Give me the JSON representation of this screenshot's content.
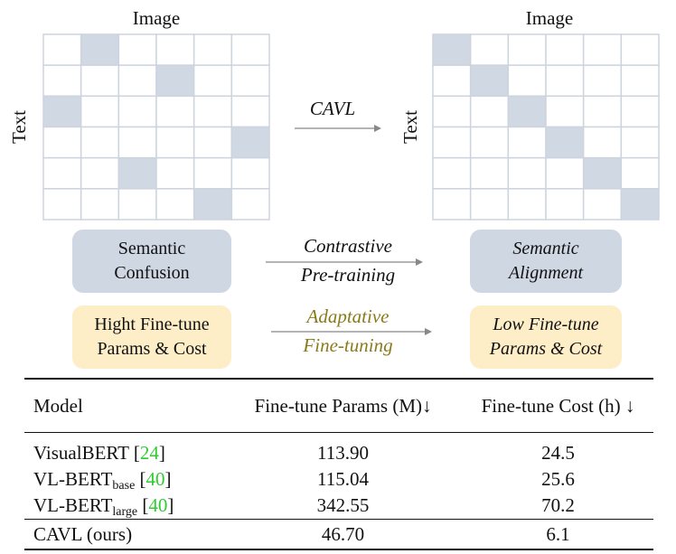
{
  "left_grid": {
    "title": "Image",
    "axis": "Text",
    "rows": 6,
    "cols": 6,
    "highlighted": [
      [
        0,
        1
      ],
      [
        1,
        3
      ],
      [
        2,
        0
      ],
      [
        3,
        5
      ],
      [
        4,
        2
      ],
      [
        5,
        4
      ]
    ]
  },
  "right_grid": {
    "title": "Image",
    "axis": "Text",
    "rows": 6,
    "cols": 6,
    "highlighted": [
      [
        0,
        0
      ],
      [
        1,
        1
      ],
      [
        2,
        2
      ],
      [
        3,
        3
      ],
      [
        4,
        4
      ],
      [
        5,
        5
      ]
    ]
  },
  "arrow_top": {
    "label": "CAVL"
  },
  "row1": {
    "left": [
      "Semantic",
      "Confusion"
    ],
    "arrow": [
      "Contrastive",
      "Pre-training"
    ],
    "right": [
      "Semantic",
      "Alignment"
    ]
  },
  "row2": {
    "left": [
      "Hight Fine-tune",
      "Params & Cost"
    ],
    "arrow": [
      "Adaptative",
      "Fine-tuning"
    ],
    "right": [
      "Low Fine-tune",
      "Params & Cost"
    ]
  },
  "colors": {
    "cell_highlight": "#d0d8e4",
    "grid_line": "#cdd4de",
    "arrow": "#888888",
    "ref": "#2ecc2e",
    "olive": "#8a7a18"
  },
  "table": {
    "headers": [
      "Model",
      "Fine-tune Params (M)↓",
      "Fine-tune Cost (h) ↓"
    ],
    "rows": [
      {
        "model": "VisualBERT",
        "sub": "",
        "ref": "24",
        "params": "113.90",
        "cost": "24.5"
      },
      {
        "model": "VL-BERT",
        "sub": "base",
        "ref": "40",
        "params": "115.04",
        "cost": "25.6"
      },
      {
        "model": "VL-BERT",
        "sub": "large",
        "ref": "40",
        "params": "342.55",
        "cost": "70.2"
      }
    ],
    "final": {
      "model": "CAVL (ours)",
      "params": "46.70",
      "cost": "6.1"
    }
  }
}
